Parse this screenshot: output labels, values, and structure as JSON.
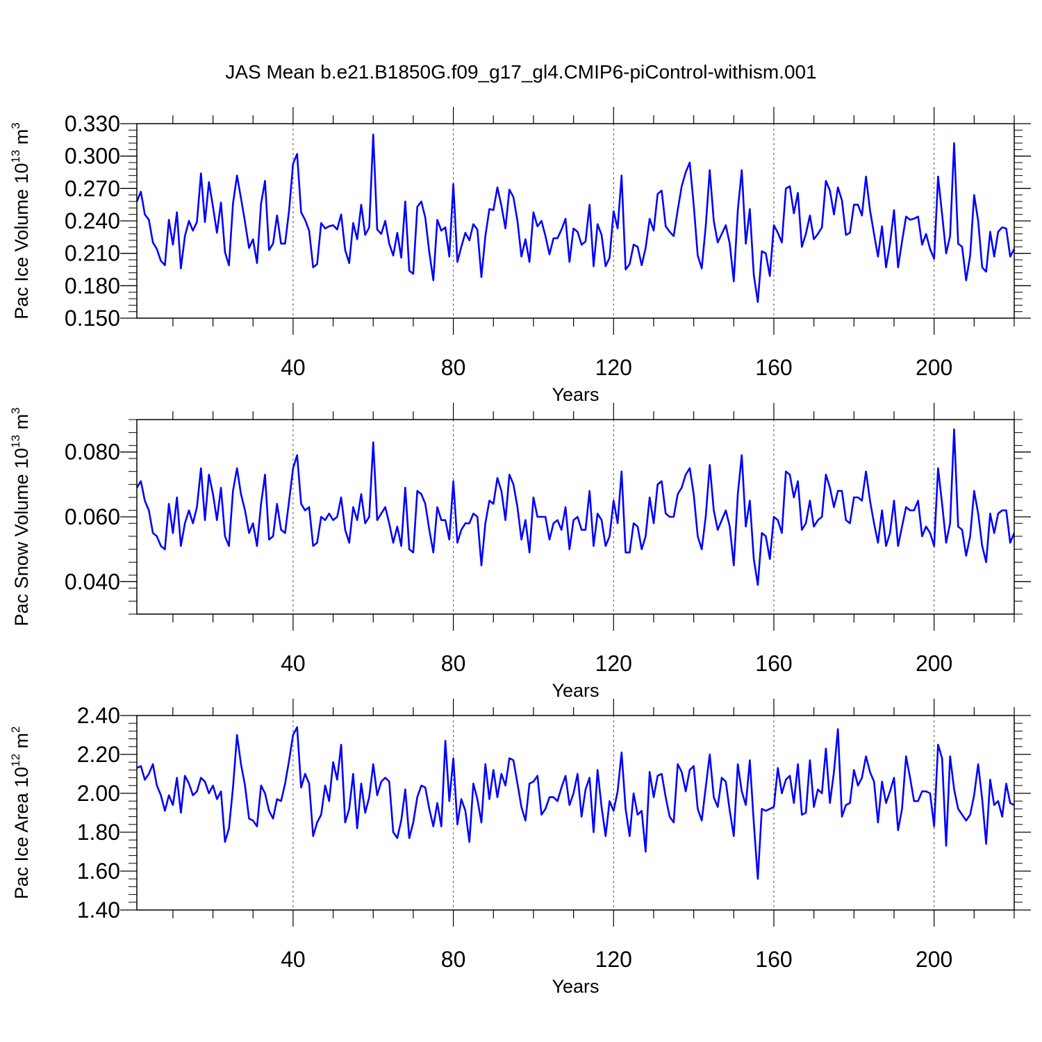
{
  "title": "JAS Mean b.e21.B1850G.f09_g17_gl4.CMIP6-piControl-withism.001",
  "colors": {
    "line": "#0000ff",
    "axis": "#000000",
    "grid": "#000000"
  },
  "chart_data": [
    {
      "type": "line",
      "xlabel": "Years",
      "ylabel": {
        "text": "Pac Ice Volume 10",
        "exponent": "13",
        "unit": "m",
        "unit_exp": "3"
      },
      "xlim": [
        1,
        220
      ],
      "ylim": [
        0.15,
        0.33
      ],
      "x_ticks": [
        "40",
        "80",
        "120",
        "160",
        "200"
      ],
      "y_ticks": [
        "0.150",
        "0.180",
        "0.210",
        "0.240",
        "0.270",
        "0.300",
        "0.330"
      ],
      "grid": "dashed vertical lines at labeled x ticks",
      "series": [
        {
          "x_start": 1,
          "values": [
            0.258,
            0.267,
            0.246,
            0.241,
            0.22,
            0.214,
            0.203,
            0.199,
            0.241,
            0.218,
            0.248,
            0.196,
            0.226,
            0.24,
            0.231,
            0.239,
            0.284,
            0.239,
            0.276,
            0.253,
            0.229,
            0.257,
            0.211,
            0.199,
            0.256,
            0.282,
            0.261,
            0.239,
            0.215,
            0.223,
            0.201,
            0.256,
            0.277,
            0.213,
            0.219,
            0.245,
            0.219,
            0.219,
            0.25,
            0.293,
            0.302,
            0.248,
            0.241,
            0.231,
            0.197,
            0.2,
            0.238,
            0.233,
            0.235,
            0.236,
            0.232,
            0.246,
            0.213,
            0.201,
            0.238,
            0.223,
            0.255,
            0.227,
            0.234,
            0.32,
            0.232,
            0.228,
            0.24,
            0.219,
            0.208,
            0.229,
            0.206,
            0.258,
            0.194,
            0.191,
            0.253,
            0.258,
            0.243,
            0.211,
            0.185,
            0.241,
            0.231,
            0.234,
            0.207,
            0.274,
            0.202,
            0.216,
            0.229,
            0.222,
            0.237,
            0.232,
            0.188,
            0.226,
            0.251,
            0.25,
            0.271,
            0.254,
            0.233,
            0.269,
            0.262,
            0.24,
            0.207,
            0.223,
            0.202,
            0.248,
            0.235,
            0.24,
            0.226,
            0.209,
            0.224,
            0.224,
            0.232,
            0.242,
            0.202,
            0.233,
            0.23,
            0.218,
            0.221,
            0.255,
            0.198,
            0.237,
            0.227,
            0.198,
            0.206,
            0.249,
            0.233,
            0.282,
            0.195,
            0.2,
            0.218,
            0.216,
            0.199,
            0.215,
            0.242,
            0.231,
            0.265,
            0.268,
            0.235,
            0.23,
            0.226,
            0.25,
            0.272,
            0.285,
            0.294,
            0.255,
            0.208,
            0.196,
            0.235,
            0.287,
            0.24,
            0.22,
            0.228,
            0.236,
            0.219,
            0.184,
            0.25,
            0.287,
            0.219,
            0.251,
            0.19,
            0.165,
            0.212,
            0.21,
            0.189,
            0.236,
            0.229,
            0.22,
            0.27,
            0.272,
            0.247,
            0.266,
            0.216,
            0.228,
            0.245,
            0.223,
            0.228,
            0.234,
            0.277,
            0.268,
            0.246,
            0.271,
            0.259,
            0.227,
            0.229,
            0.255,
            0.255,
            0.245,
            0.281,
            0.25,
            0.228,
            0.207,
            0.235,
            0.197,
            0.219,
            0.25,
            0.197,
            0.221,
            0.244,
            0.241,
            0.242,
            0.244,
            0.218,
            0.228,
            0.214,
            0.205,
            0.281,
            0.246,
            0.21,
            0.226,
            0.312,
            0.219,
            0.216,
            0.185,
            0.208,
            0.264,
            0.24,
            0.197,
            0.193,
            0.23,
            0.207,
            0.23,
            0.234,
            0.233,
            0.207,
            0.214
          ]
        }
      ]
    },
    {
      "type": "line",
      "xlabel": "Years",
      "ylabel": {
        "text": "Pac Snow Volume 10",
        "exponent": "13",
        "unit": "m",
        "unit_exp": "3"
      },
      "xlim": [
        1,
        220
      ],
      "ylim": [
        0.03,
        0.09
      ],
      "x_ticks": [
        "40",
        "80",
        "120",
        "160",
        "200"
      ],
      "y_ticks": [
        "0.040",
        "0.060",
        "0.080"
      ],
      "grid": "dashed vertical lines at labeled x ticks",
      "series": [
        {
          "x_start": 1,
          "values": [
            0.069,
            0.071,
            0.065,
            0.062,
            0.055,
            0.054,
            0.051,
            0.05,
            0.064,
            0.055,
            0.066,
            0.051,
            0.058,
            0.062,
            0.058,
            0.063,
            0.075,
            0.059,
            0.073,
            0.067,
            0.059,
            0.069,
            0.054,
            0.051,
            0.068,
            0.075,
            0.067,
            0.062,
            0.055,
            0.058,
            0.051,
            0.064,
            0.073,
            0.053,
            0.054,
            0.064,
            0.056,
            0.055,
            0.065,
            0.075,
            0.079,
            0.064,
            0.062,
            0.063,
            0.051,
            0.052,
            0.06,
            0.059,
            0.061,
            0.059,
            0.06,
            0.066,
            0.056,
            0.052,
            0.063,
            0.059,
            0.067,
            0.058,
            0.06,
            0.083,
            0.059,
            0.061,
            0.063,
            0.058,
            0.052,
            0.057,
            0.051,
            0.069,
            0.05,
            0.049,
            0.068,
            0.067,
            0.064,
            0.056,
            0.049,
            0.063,
            0.059,
            0.059,
            0.053,
            0.071,
            0.052,
            0.056,
            0.058,
            0.058,
            0.061,
            0.06,
            0.045,
            0.058,
            0.065,
            0.064,
            0.072,
            0.068,
            0.059,
            0.073,
            0.07,
            0.063,
            0.053,
            0.059,
            0.049,
            0.066,
            0.06,
            0.06,
            0.06,
            0.053,
            0.058,
            0.059,
            0.056,
            0.063,
            0.05,
            0.059,
            0.06,
            0.056,
            0.056,
            0.068,
            0.051,
            0.061,
            0.059,
            0.051,
            0.054,
            0.065,
            0.058,
            0.074,
            0.049,
            0.049,
            0.058,
            0.057,
            0.05,
            0.054,
            0.066,
            0.058,
            0.07,
            0.071,
            0.061,
            0.06,
            0.06,
            0.067,
            0.069,
            0.073,
            0.075,
            0.067,
            0.054,
            0.05,
            0.06,
            0.076,
            0.062,
            0.056,
            0.059,
            0.062,
            0.057,
            0.045,
            0.067,
            0.079,
            0.057,
            0.065,
            0.047,
            0.039,
            0.055,
            0.054,
            0.047,
            0.06,
            0.059,
            0.055,
            0.074,
            0.073,
            0.066,
            0.071,
            0.056,
            0.058,
            0.065,
            0.057,
            0.059,
            0.06,
            0.073,
            0.069,
            0.063,
            0.068,
            0.068,
            0.059,
            0.058,
            0.066,
            0.066,
            0.065,
            0.074,
            0.065,
            0.058,
            0.052,
            0.062,
            0.051,
            0.055,
            0.065,
            0.051,
            0.057,
            0.063,
            0.062,
            0.062,
            0.065,
            0.054,
            0.057,
            0.055,
            0.051,
            0.075,
            0.064,
            0.052,
            0.058,
            0.087,
            0.057,
            0.056,
            0.048,
            0.054,
            0.068,
            0.061,
            0.051,
            0.046,
            0.061,
            0.055,
            0.061,
            0.062,
            0.062,
            0.052,
            0.055
          ]
        }
      ]
    },
    {
      "type": "line",
      "xlabel": "Years",
      "ylabel": {
        "text": "Pac Ice Area 10",
        "exponent": "12",
        "unit": "m",
        "unit_exp": "2"
      },
      "xlim": [
        1,
        220
      ],
      "ylim": [
        1.4,
        2.4
      ],
      "x_ticks": [
        "40",
        "80",
        "120",
        "160",
        "200"
      ],
      "y_ticks": [
        "1.40",
        "1.60",
        "1.80",
        "2.00",
        "2.20",
        "2.40"
      ],
      "grid": "dashed vertical lines at labeled x ticks",
      "series": [
        {
          "x_start": 1,
          "values": [
            2.13,
            2.14,
            2.07,
            2.1,
            2.15,
            2.04,
            1.99,
            1.91,
            1.99,
            1.94,
            2.08,
            1.9,
            2.09,
            2.05,
            1.99,
            2.01,
            2.08,
            2.06,
            2.0,
            2.04,
            1.97,
            2.01,
            1.75,
            1.82,
            2.03,
            2.3,
            2.15,
            2.04,
            1.87,
            1.86,
            1.83,
            2.04,
            2.0,
            1.91,
            1.87,
            1.97,
            1.96,
            2.05,
            2.17,
            2.3,
            2.34,
            2.03,
            2.1,
            2.05,
            1.78,
            1.85,
            1.89,
            2.04,
            1.96,
            2.16,
            2.07,
            2.25,
            1.85,
            1.92,
            2.1,
            1.82,
            2.05,
            1.9,
            1.98,
            2.15,
            1.99,
            2.06,
            2.08,
            2.06,
            1.8,
            1.77,
            1.86,
            2.02,
            1.77,
            1.85,
            1.98,
            2.04,
            2.03,
            1.92,
            1.83,
            1.95,
            1.83,
            2.27,
            1.96,
            2.18,
            1.84,
            1.97,
            1.91,
            1.75,
            2.05,
            1.97,
            1.85,
            2.15,
            1.97,
            2.12,
            1.98,
            2.1,
            2.04,
            2.18,
            2.17,
            2.05,
            1.93,
            1.86,
            2.05,
            2.06,
            2.09,
            1.89,
            1.92,
            1.98,
            1.98,
            1.96,
            2.03,
            2.09,
            1.94,
            2.0,
            2.1,
            1.88,
            2.02,
            2.08,
            1.8,
            2.12,
            1.93,
            1.78,
            1.96,
            1.91,
            2.01,
            2.21,
            1.92,
            1.78,
            2.0,
            1.89,
            1.91,
            1.7,
            2.11,
            1.98,
            2.09,
            2.1,
            1.98,
            1.88,
            1.85,
            2.15,
            2.11,
            2.01,
            2.12,
            2.14,
            1.92,
            1.86,
            2.03,
            2.2,
            1.98,
            1.93,
            2.08,
            2.06,
            1.91,
            1.78,
            2.15,
            2.01,
            1.94,
            2.17,
            1.85,
            1.56,
            1.92,
            1.91,
            1.92,
            1.93,
            2.13,
            2.0,
            2.07,
            2.09,
            1.95,
            2.15,
            1.89,
            1.9,
            2.17,
            1.93,
            2.02,
            2.0,
            2.23,
            1.95,
            2.11,
            2.33,
            1.88,
            1.94,
            1.95,
            2.12,
            2.04,
            2.08,
            2.19,
            2.11,
            2.06,
            1.85,
            2.06,
            1.95,
            2.01,
            2.08,
            1.81,
            1.92,
            2.19,
            2.08,
            1.96,
            1.96,
            2.01,
            2.01,
            2.0,
            1.83,
            2.25,
            2.18,
            1.73,
            2.19,
            2.02,
            1.92,
            1.89,
            1.86,
            1.89,
            1.99,
            2.15,
            1.97,
            1.74,
            2.07,
            1.94,
            1.96,
            1.88,
            2.05,
            1.95,
            1.94
          ]
        }
      ]
    }
  ]
}
